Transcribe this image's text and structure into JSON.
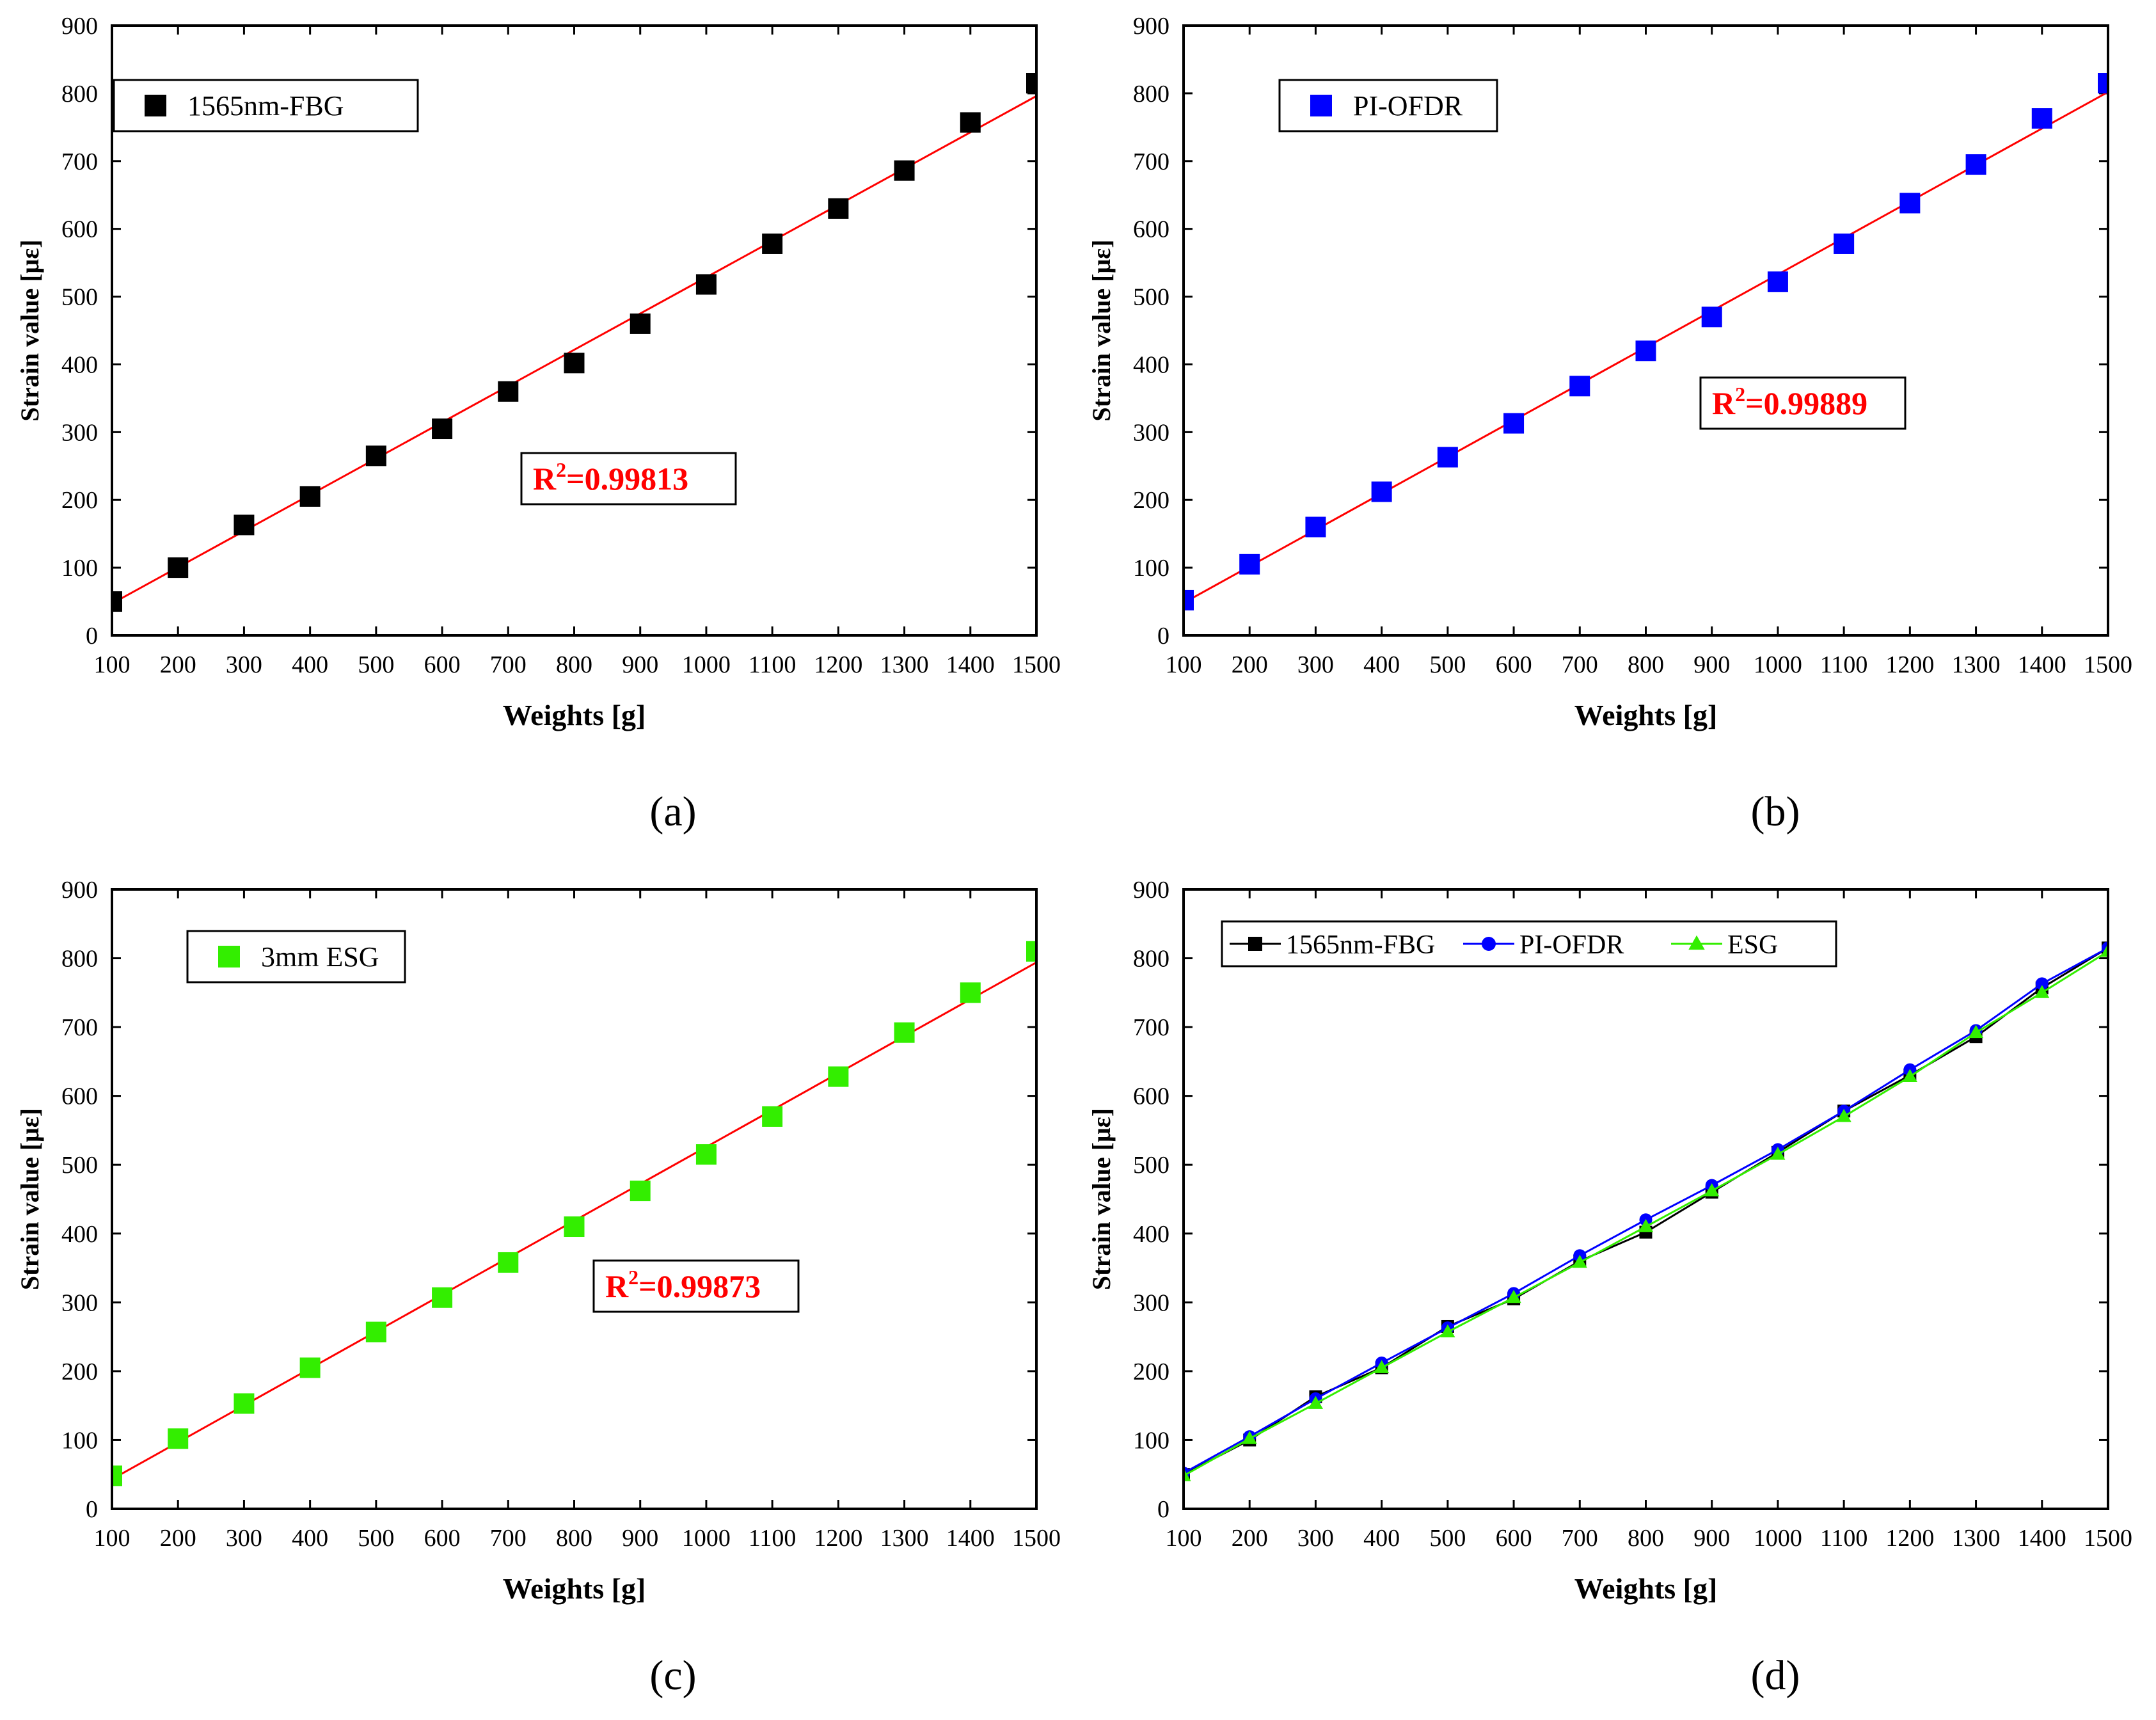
{
  "chart_data": [
    {
      "type": "scatter",
      "panel_label": "(a)",
      "xlabel": "Weights [g]",
      "ylabel": "Strain value [με]",
      "xlim": [
        100,
        1500
      ],
      "ylim": [
        0,
        900
      ],
      "xticks": [
        100,
        200,
        300,
        400,
        500,
        600,
        700,
        800,
        900,
        1000,
        1100,
        1200,
        1300,
        1400,
        1500
      ],
      "yticks": [
        0,
        100,
        200,
        300,
        400,
        500,
        600,
        700,
        800,
        900
      ],
      "legend_position": "top-left",
      "series": [
        {
          "name": "1565nm-FBG",
          "color": "#000000",
          "marker": "square",
          "x": [
            100,
            200,
            300,
            400,
            500,
            600,
            700,
            800,
            900,
            1000,
            1100,
            1200,
            1300,
            1400,
            1500
          ],
          "values": [
            50,
            100,
            163,
            205,
            265,
            305,
            360,
            402,
            460,
            518,
            578,
            630,
            686,
            757,
            815
          ]
        }
      ],
      "fit": {
        "color": "#ff0000",
        "x": [
          100,
          1500
        ],
        "values": [
          47,
          796
        ]
      },
      "annotation": {
        "prefix": "R",
        "superscript": "2",
        "text": "=0.99813",
        "color": "#ff0000"
      }
    },
    {
      "type": "scatter",
      "panel_label": "(b)",
      "xlabel": "Weights [g]",
      "ylabel": "Strain value [με]",
      "xlim": [
        100,
        1500
      ],
      "ylim": [
        0,
        900
      ],
      "xticks": [
        100,
        200,
        300,
        400,
        500,
        600,
        700,
        800,
        900,
        1000,
        1100,
        1200,
        1300,
        1400,
        1500
      ],
      "yticks": [
        0,
        100,
        200,
        300,
        400,
        500,
        600,
        700,
        800,
        900
      ],
      "legend_position": "top-left",
      "series": [
        {
          "name": "PI-OFDR",
          "color": "#0000ff",
          "marker": "square",
          "x": [
            100,
            200,
            300,
            400,
            500,
            600,
            700,
            800,
            900,
            1000,
            1100,
            1200,
            1300,
            1400,
            1500
          ],
          "values": [
            52,
            105,
            160,
            212,
            263,
            313,
            368,
            420,
            470,
            522,
            578,
            638,
            695,
            763,
            815
          ]
        }
      ],
      "fit": {
        "color": "#ff0000",
        "x": [
          100,
          1500
        ],
        "values": [
          48,
          802
        ]
      },
      "annotation": {
        "prefix": "R",
        "superscript": "2",
        "text": "=0.99889",
        "color": "#ff0000"
      }
    },
    {
      "type": "scatter",
      "panel_label": "(c)",
      "xlabel": "Weights [g]",
      "ylabel": "Strain value [με]",
      "xlim": [
        100,
        1500
      ],
      "ylim": [
        0,
        900
      ],
      "xticks": [
        100,
        200,
        300,
        400,
        500,
        600,
        700,
        800,
        900,
        1000,
        1100,
        1200,
        1300,
        1400,
        1500
      ],
      "yticks": [
        0,
        100,
        200,
        300,
        400,
        500,
        600,
        700,
        800,
        900
      ],
      "legend_position": "top-left",
      "series": [
        {
          "name": "3mm ESG",
          "color": "#33ee00",
          "marker": "square",
          "x": [
            100,
            200,
            300,
            400,
            500,
            600,
            700,
            800,
            900,
            1000,
            1100,
            1200,
            1300,
            1400,
            1500
          ],
          "values": [
            48,
            102,
            153,
            205,
            257,
            307,
            358,
            410,
            462,
            515,
            570,
            628,
            692,
            750,
            810
          ]
        }
      ],
      "fit": {
        "color": "#ff0000",
        "x": [
          100,
          1500
        ],
        "values": [
          43,
          794
        ]
      },
      "annotation": {
        "prefix": "R",
        "superscript": "2",
        "text": "=0.99873",
        "color": "#ff0000"
      }
    },
    {
      "type": "line",
      "panel_label": "(d)",
      "xlabel": "Weights [g]",
      "ylabel": "Strain value [με]",
      "xlim": [
        100,
        1500
      ],
      "ylim": [
        0,
        900
      ],
      "xticks": [
        100,
        200,
        300,
        400,
        500,
        600,
        700,
        800,
        900,
        1000,
        1100,
        1200,
        1300,
        1400,
        1500
      ],
      "yticks": [
        0,
        100,
        200,
        300,
        400,
        500,
        600,
        700,
        800,
        900
      ],
      "legend_position": "top",
      "series": [
        {
          "name": "1565nm-FBG",
          "color": "#000000",
          "marker": "square",
          "x": [
            100,
            200,
            300,
            400,
            500,
            600,
            700,
            800,
            900,
            1000,
            1100,
            1200,
            1300,
            1400,
            1500
          ],
          "values": [
            50,
            100,
            163,
            205,
            265,
            305,
            360,
            402,
            460,
            518,
            578,
            630,
            686,
            757,
            815
          ]
        },
        {
          "name": "PI-OFDR",
          "color": "#0000ff",
          "marker": "circle",
          "x": [
            100,
            200,
            300,
            400,
            500,
            600,
            700,
            800,
            900,
            1000,
            1100,
            1200,
            1300,
            1400,
            1500
          ],
          "values": [
            52,
            105,
            160,
            212,
            263,
            313,
            368,
            420,
            470,
            522,
            578,
            638,
            695,
            763,
            815
          ]
        },
        {
          "name": "ESG",
          "color": "#33ee00",
          "marker": "triangle",
          "x": [
            100,
            200,
            300,
            400,
            500,
            600,
            700,
            800,
            900,
            1000,
            1100,
            1200,
            1300,
            1400,
            1500
          ],
          "values": [
            48,
            102,
            153,
            205,
            257,
            307,
            358,
            410,
            462,
            515,
            570,
            628,
            692,
            750,
            810
          ]
        }
      ]
    }
  ]
}
